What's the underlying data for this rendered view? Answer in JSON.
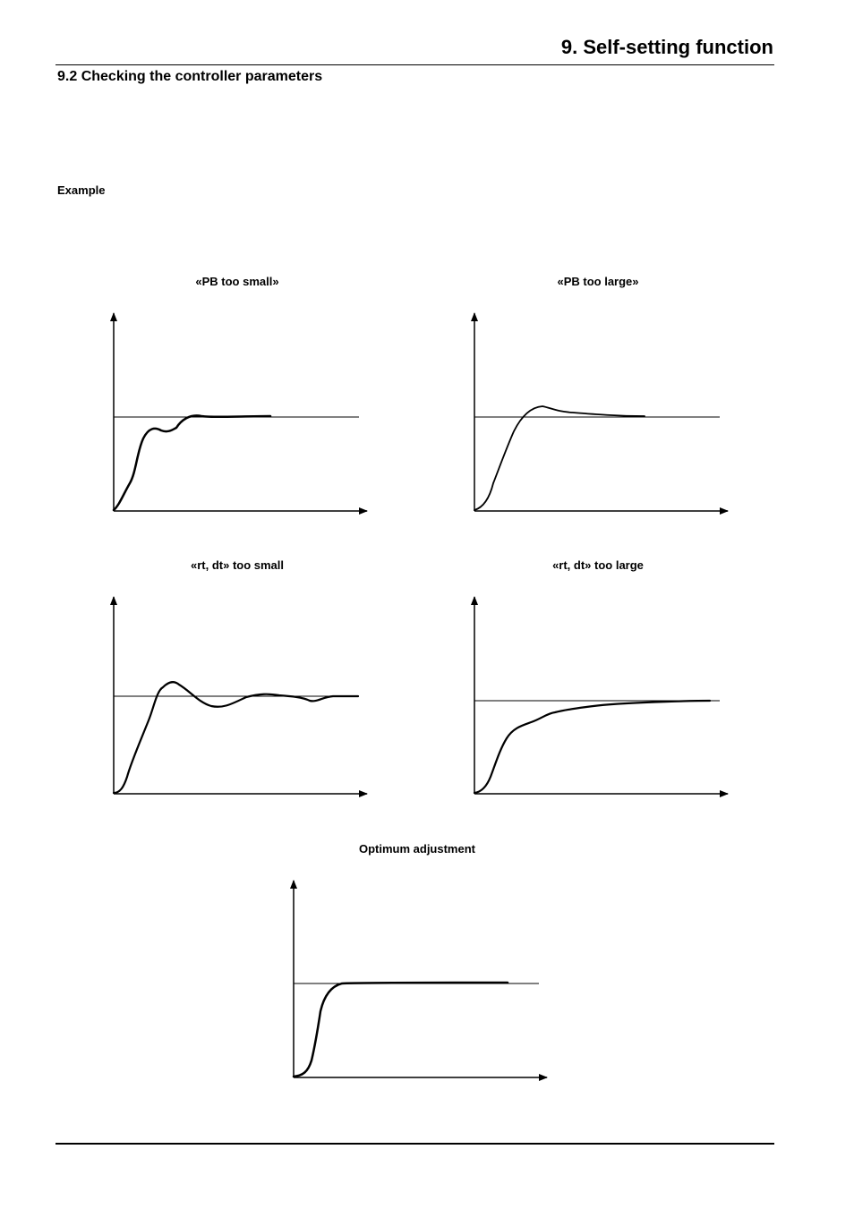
{
  "header": {
    "chapter_title": "9. Self-setting function"
  },
  "section": {
    "title": "9.2 Checking the controller parameters"
  },
  "example_label": "Example",
  "graphs": {
    "pb_small": {
      "caption": "«PB too small»"
    },
    "pb_large": {
      "caption": "«PB too large»"
    },
    "rt_small": {
      "caption": "«rt, dt» too small"
    },
    "rt_large": {
      "caption": "«rt, dt» too large"
    },
    "optimum": {
      "caption": "Optimum adjustment"
    }
  }
}
